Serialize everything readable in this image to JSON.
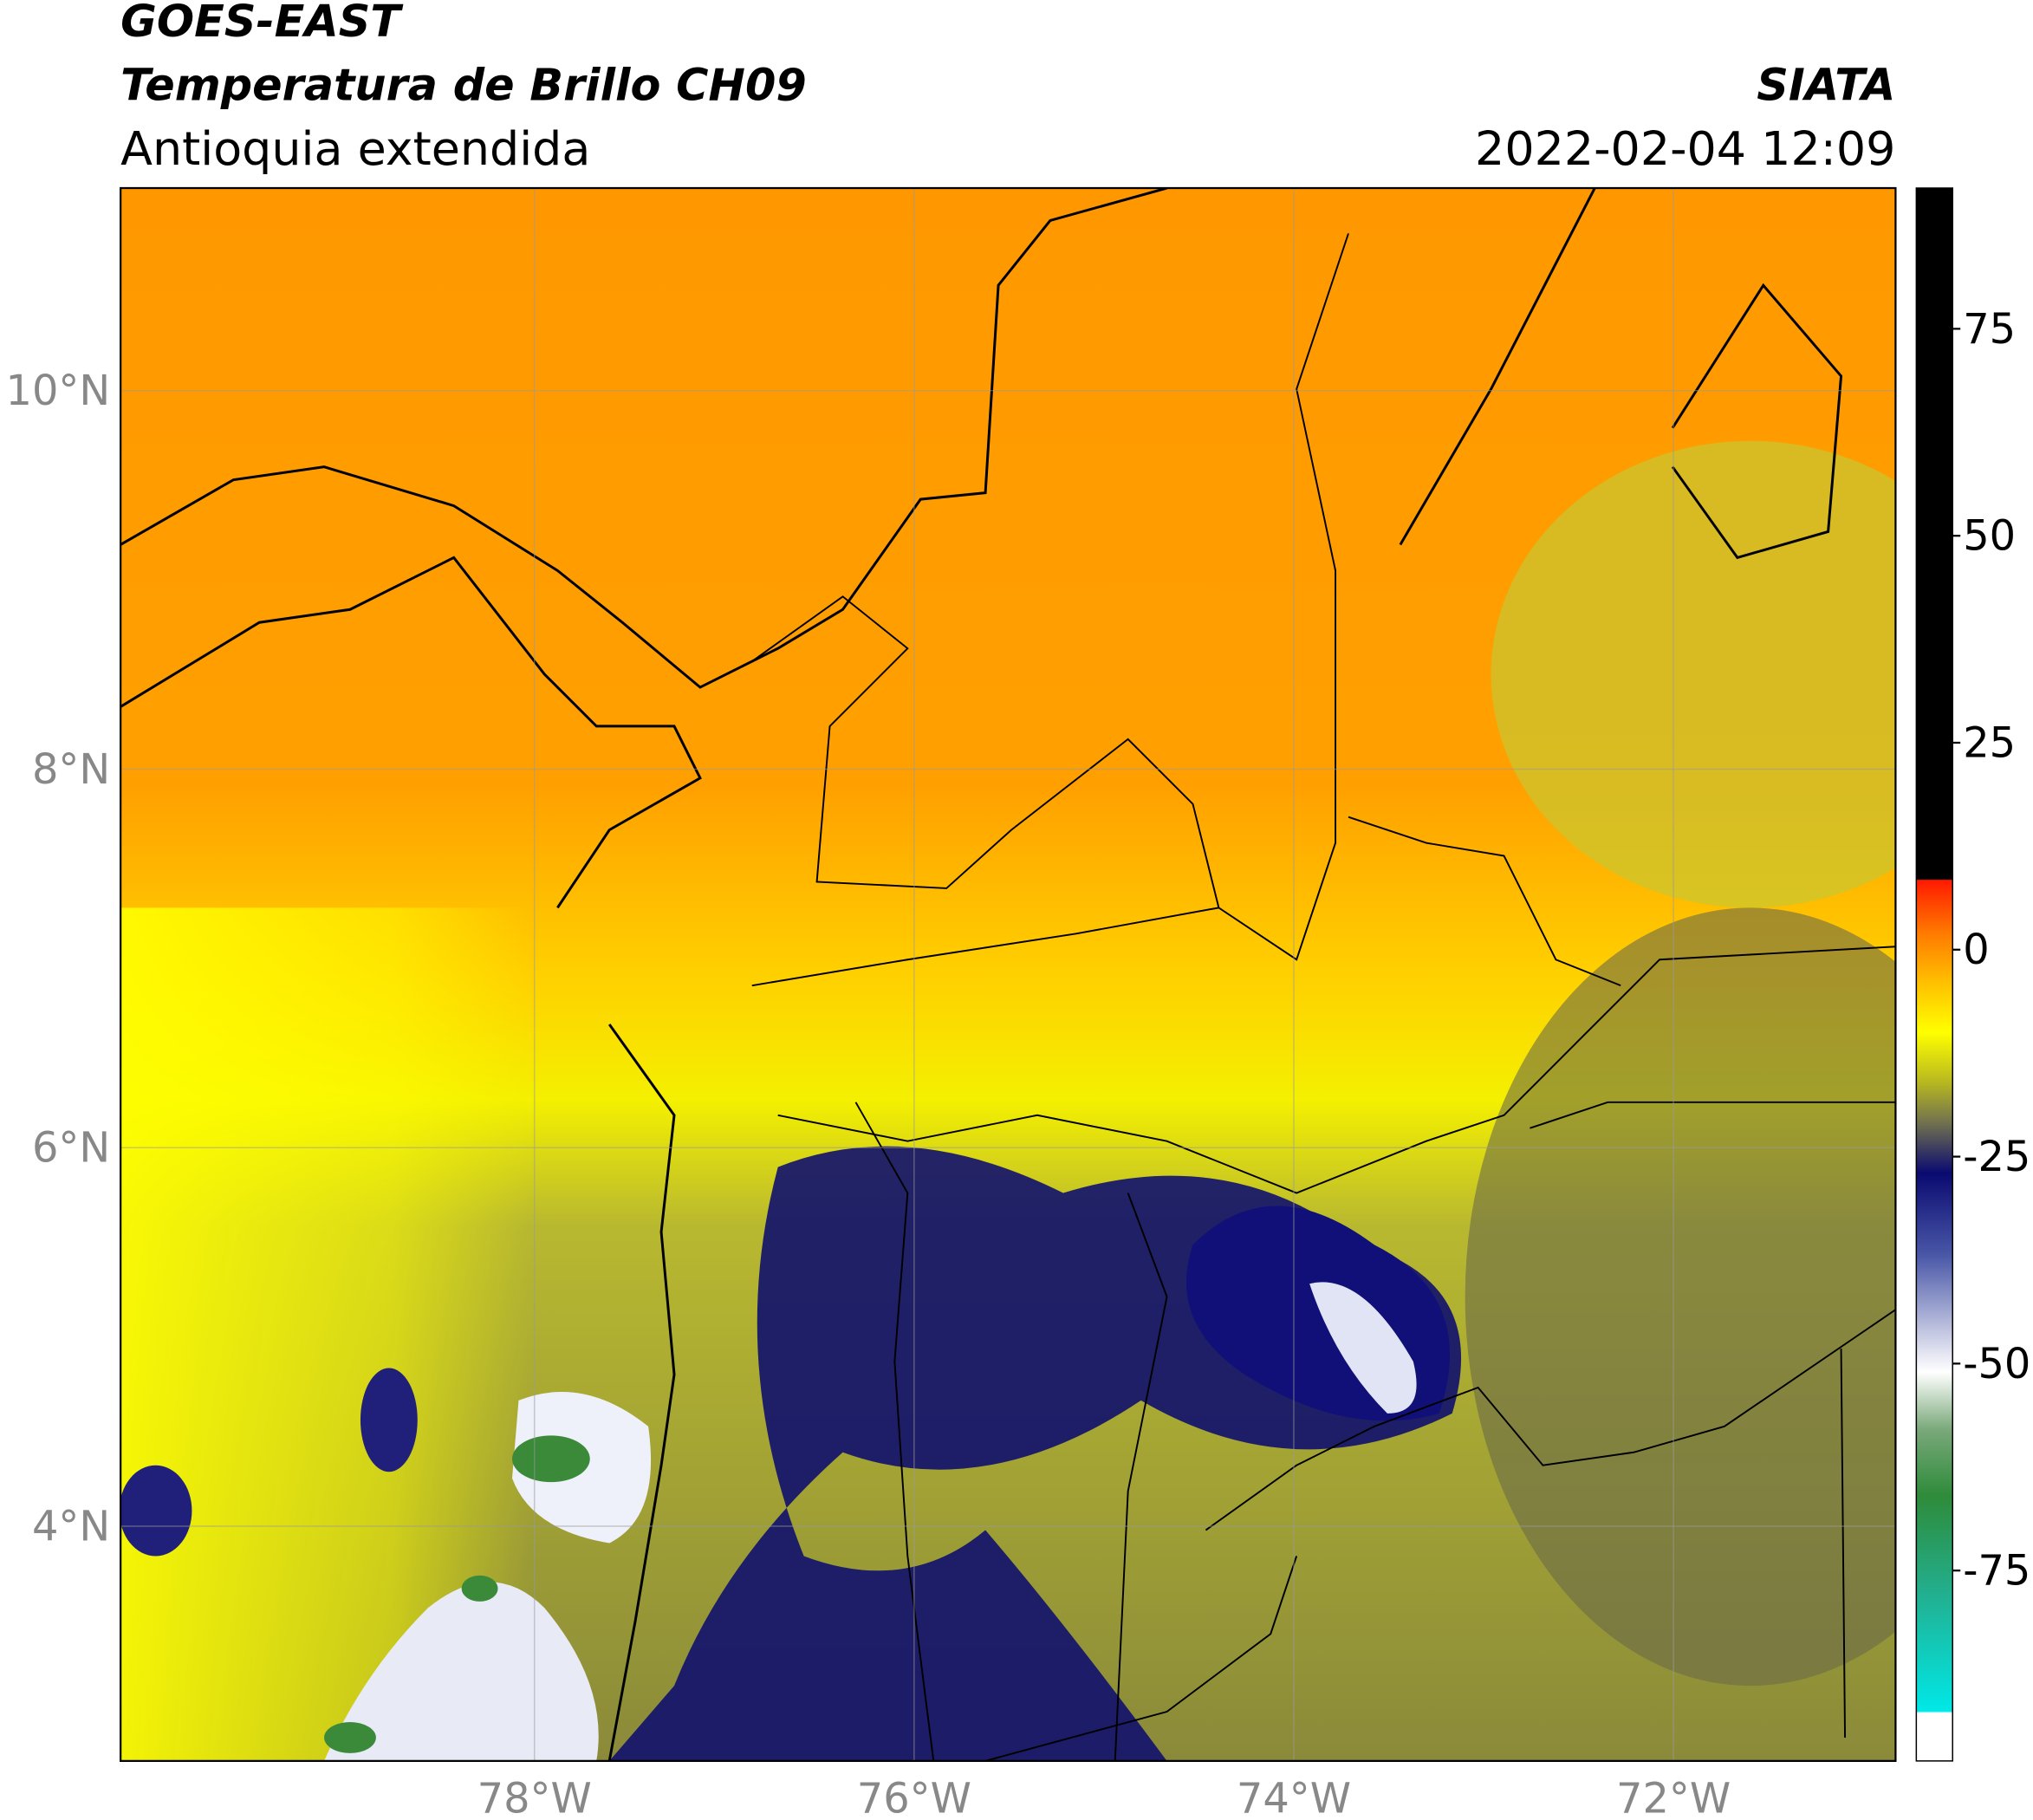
{
  "header": {
    "satellite": "GOES-EAST",
    "title": "Temperatura de Brillo CH09",
    "region": "Antioquia extendida",
    "source": "SIATA",
    "datetime": "2022-02-04 12:09"
  },
  "map": {
    "xlim": [
      -80.18,
      -70.83
    ],
    "ylim": [
      2.76,
      11.07
    ],
    "grid": true,
    "xticks": [
      {
        "value": -78,
        "label": "78°W"
      },
      {
        "value": -76,
        "label": "76°W"
      },
      {
        "value": -74,
        "label": "74°W"
      },
      {
        "value": -72,
        "label": "72°W"
      }
    ],
    "yticks": [
      {
        "value": 4,
        "label": "4°N"
      },
      {
        "value": 6,
        "label": "6°N"
      },
      {
        "value": 8,
        "label": "8°N"
      },
      {
        "value": 10,
        "label": "10°N"
      }
    ]
  },
  "colorbar": {
    "lim": [
      -98,
      92
    ],
    "ticks": [
      75,
      50,
      25,
      0,
      -25,
      -50,
      -75
    ],
    "stops": [
      {
        "value": 92,
        "color": "#000000"
      },
      {
        "value": 8.5,
        "color": "#000000"
      },
      {
        "value": 8.4,
        "color": "#ff1a00"
      },
      {
        "value": 2,
        "color": "#ff7a00"
      },
      {
        "value": -4,
        "color": "#ffc000"
      },
      {
        "value": -10,
        "color": "#ffff00"
      },
      {
        "value": -16,
        "color": "#b8b820"
      },
      {
        "value": -21,
        "color": "#707050"
      },
      {
        "value": -27,
        "color": "#0a0a70"
      },
      {
        "value": -37,
        "color": "#4a58a8"
      },
      {
        "value": -46,
        "color": "#c0c4e0"
      },
      {
        "value": -51,
        "color": "#ffffff"
      },
      {
        "value": -58,
        "color": "#7aa87a"
      },
      {
        "value": -66,
        "color": "#2e8b3a"
      },
      {
        "value": -78,
        "color": "#22b090"
      },
      {
        "value": -92,
        "color": "#00e8e8"
      },
      {
        "value": -92.2,
        "color": "#ffffff"
      },
      {
        "value": -98,
        "color": "#ffffff"
      }
    ]
  }
}
